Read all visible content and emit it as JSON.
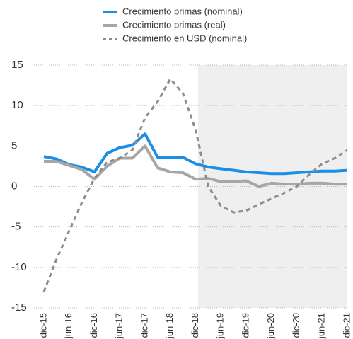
{
  "chart_data": {
    "type": "line",
    "categories": [
      "dic-15",
      null,
      "jun-16",
      null,
      "dic-16",
      null,
      "jun-17",
      null,
      "dic-17",
      null,
      "jun-18",
      null,
      "dic-18",
      null,
      "jun-19",
      null,
      "dic-19",
      null,
      "jun-20",
      null,
      "dic-20",
      null,
      "jun-21",
      null,
      "dic-21"
    ],
    "series": [
      {
        "name": "Crecimiento primas (nominal)",
        "color": "#1a8fe6",
        "style": "solid",
        "values": [
          3.7,
          3.4,
          2.7,
          2.4,
          1.8,
          4.1,
          4.8,
          5.1,
          6.5,
          3.6,
          3.6,
          3.6,
          2.8,
          2.4,
          2.2,
          2.0,
          1.8,
          1.7,
          1.6,
          1.6,
          1.7,
          1.8,
          1.9,
          1.9,
          2.0
        ]
      },
      {
        "name": "Crecimiento primas (real)",
        "color": "#a6a6a6",
        "style": "solid",
        "values": [
          3.1,
          3.1,
          2.6,
          2.1,
          0.9,
          2.5,
          3.5,
          3.5,
          5.0,
          2.3,
          1.8,
          1.7,
          0.9,
          1.0,
          0.6,
          0.6,
          0.7,
          0.0,
          0.4,
          0.3,
          0.3,
          0.4,
          0.4,
          0.3,
          0.3
        ]
      },
      {
        "name": "Crecimiento en USD (nominal)",
        "color": "#8c8c8c",
        "style": "dashed",
        "values": [
          -13.0,
          -9.0,
          -5.5,
          -2.0,
          1.0,
          3.0,
          3.5,
          4.5,
          8.5,
          10.5,
          13.3,
          11.5,
          7.0,
          0.0,
          -2.4,
          -3.2,
          -3.0,
          -2.2,
          -1.5,
          -0.8,
          0.0,
          1.5,
          2.8,
          3.5,
          4.5
        ]
      }
    ],
    "ylim": [
      -15,
      15
    ],
    "yticks": [
      -15,
      -10,
      -5,
      0,
      5,
      10,
      15
    ],
    "grid": true
  }
}
